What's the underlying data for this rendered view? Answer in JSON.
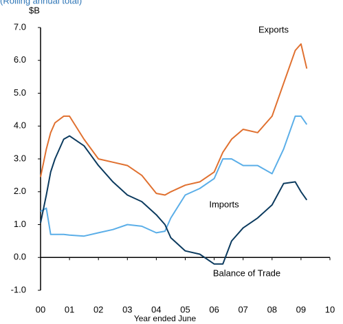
{
  "chart_data": {
    "type": "line",
    "subtitle": "(Rolling annual total)",
    "y_label": "$B",
    "x_label": "Year ended June",
    "x": [
      2000,
      2000.2,
      2000.35,
      2000.5,
      2000.8,
      2001,
      2001.5,
      2002,
      2002.5,
      2003,
      2003.5,
      2004,
      2004.3,
      2004.5,
      2005,
      2005.5,
      2006,
      2006.3,
      2006.6,
      2007,
      2007.5,
      2008,
      2008.4,
      2008.8,
      2009,
      2009.2
    ],
    "series": [
      {
        "name": "Exports",
        "color": "#e0702f",
        "values": [
          2.45,
          3.3,
          3.8,
          4.1,
          4.3,
          4.3,
          3.6,
          3.0,
          2.9,
          2.8,
          2.5,
          1.95,
          1.9,
          2.0,
          2.2,
          2.3,
          2.6,
          3.2,
          3.6,
          3.9,
          3.8,
          4.3,
          5.3,
          6.3,
          6.5,
          5.75
        ]
      },
      {
        "name": "Imports",
        "color": "#5aaee8",
        "values": [
          1.4,
          1.5,
          0.7,
          0.7,
          0.7,
          0.68,
          0.65,
          0.75,
          0.85,
          1.0,
          0.95,
          0.75,
          0.8,
          1.2,
          1.9,
          2.1,
          2.4,
          3.0,
          3.0,
          2.8,
          2.8,
          2.55,
          3.3,
          4.3,
          4.3,
          4.05
        ]
      },
      {
        "name": "Balance of Trade",
        "color": "#0b3a5e",
        "values": [
          1.05,
          1.9,
          2.6,
          3.0,
          3.6,
          3.7,
          3.4,
          2.8,
          2.3,
          1.9,
          1.7,
          1.3,
          1.0,
          0.6,
          0.2,
          0.1,
          -0.2,
          -0.2,
          0.5,
          0.9,
          1.2,
          1.6,
          2.25,
          2.3,
          2.0,
          1.75
        ]
      }
    ],
    "xlim": [
      2000,
      2010
    ],
    "xticks": [
      {
        "value": 2000,
        "label": "00"
      },
      {
        "value": 2001,
        "label": "01"
      },
      {
        "value": 2002,
        "label": "02"
      },
      {
        "value": 2003,
        "label": "03"
      },
      {
        "value": 2004,
        "label": "04"
      },
      {
        "value": 2005,
        "label": "05"
      },
      {
        "value": 2006,
        "label": "06"
      },
      {
        "value": 2007,
        "label": "07"
      },
      {
        "value": 2008,
        "label": "08"
      },
      {
        "value": 2009,
        "label": "09"
      },
      {
        "value": 2010,
        "label": "10"
      }
    ],
    "ylim": [
      -1,
      7
    ],
    "yticks": [
      {
        "value": -1,
        "label": "-1.0"
      },
      {
        "value": 0,
        "label": "0.0"
      },
      {
        "value": 1,
        "label": "1.0"
      },
      {
        "value": 2,
        "label": "2.0"
      },
      {
        "value": 3,
        "label": "3.0"
      },
      {
        "value": 4,
        "label": "4.0"
      },
      {
        "value": 5,
        "label": "5.0"
      },
      {
        "value": 6,
        "label": "6.0"
      },
      {
        "value": 7,
        "label": "7.0"
      }
    ],
    "grid": false
  }
}
